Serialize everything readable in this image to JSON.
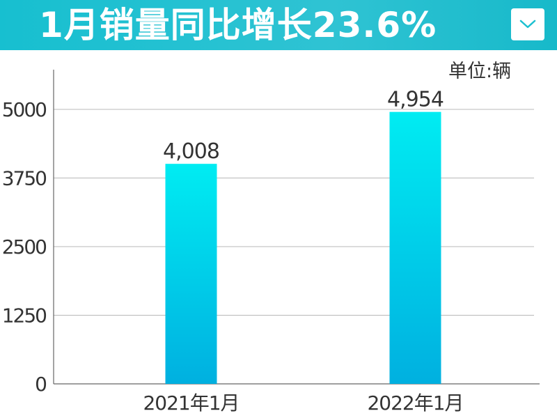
{
  "header": {
    "title": "1月销量同比增长23.6%",
    "accent_color": "#1cc0d0",
    "dropdown_icon": "chevron-down-icon"
  },
  "unit_label": "单位:辆",
  "chart_data": {
    "type": "bar",
    "categories": [
      "2021年1月",
      "2022年1月"
    ],
    "values": [
      4008,
      4954
    ],
    "data_labels": [
      "4,008",
      "4,954"
    ],
    "title": "1月销量同比增长23.6%",
    "xlabel": "",
    "ylabel": "",
    "ylim": [
      0,
      5000
    ],
    "yticks": [
      0,
      1250,
      2500,
      3750,
      5000
    ],
    "grid": true,
    "bar_colors": {
      "top": "#00ecf2",
      "bottom": "#00b0e0"
    }
  }
}
